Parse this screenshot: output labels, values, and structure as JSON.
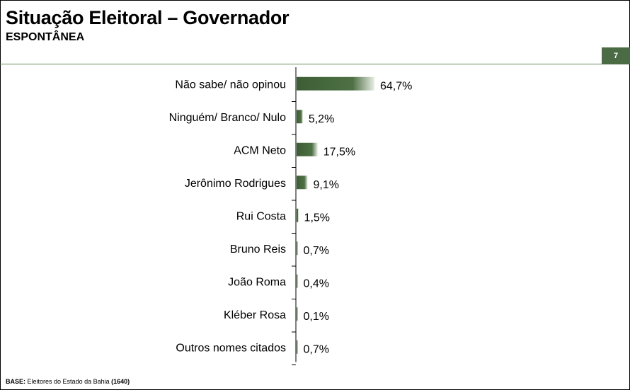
{
  "header": {
    "title": "Situação Eleitoral – Governador",
    "subtitle": "ESPONTÂNEA",
    "page_number": "7"
  },
  "footer": {
    "base_label": "BASE:",
    "base_text": "Eleitores do Estado da Bahia",
    "base_count": "(1640)"
  },
  "colors": {
    "bar_dark": "#3d5e35",
    "bar_light": "#e8eee4",
    "accent": "#4a6b44"
  },
  "chart_data": {
    "type": "bar",
    "orientation": "horizontal",
    "categories": [
      "Não sabe/ não opinou",
      "Ninguém/ Branco/ Nulo",
      "ACM Neto",
      "Jerônimo Rodrigues",
      "Rui Costa",
      "Bruno Reis",
      "João Roma",
      "Kléber Rosa",
      "Outros nomes citados"
    ],
    "values": [
      64.7,
      5.2,
      17.5,
      9.1,
      1.5,
      0.7,
      0.4,
      0.1,
      0.7
    ],
    "value_labels": [
      "64,7%",
      "5,2%",
      "17,5%",
      "9,1%",
      "1,5%",
      "0,7%",
      "0,4%",
      "0,1%",
      "0,7%"
    ],
    "title": "",
    "xlabel": "",
    "ylabel": "",
    "xlim": [
      0,
      100
    ],
    "grid": false,
    "legend": "none"
  }
}
